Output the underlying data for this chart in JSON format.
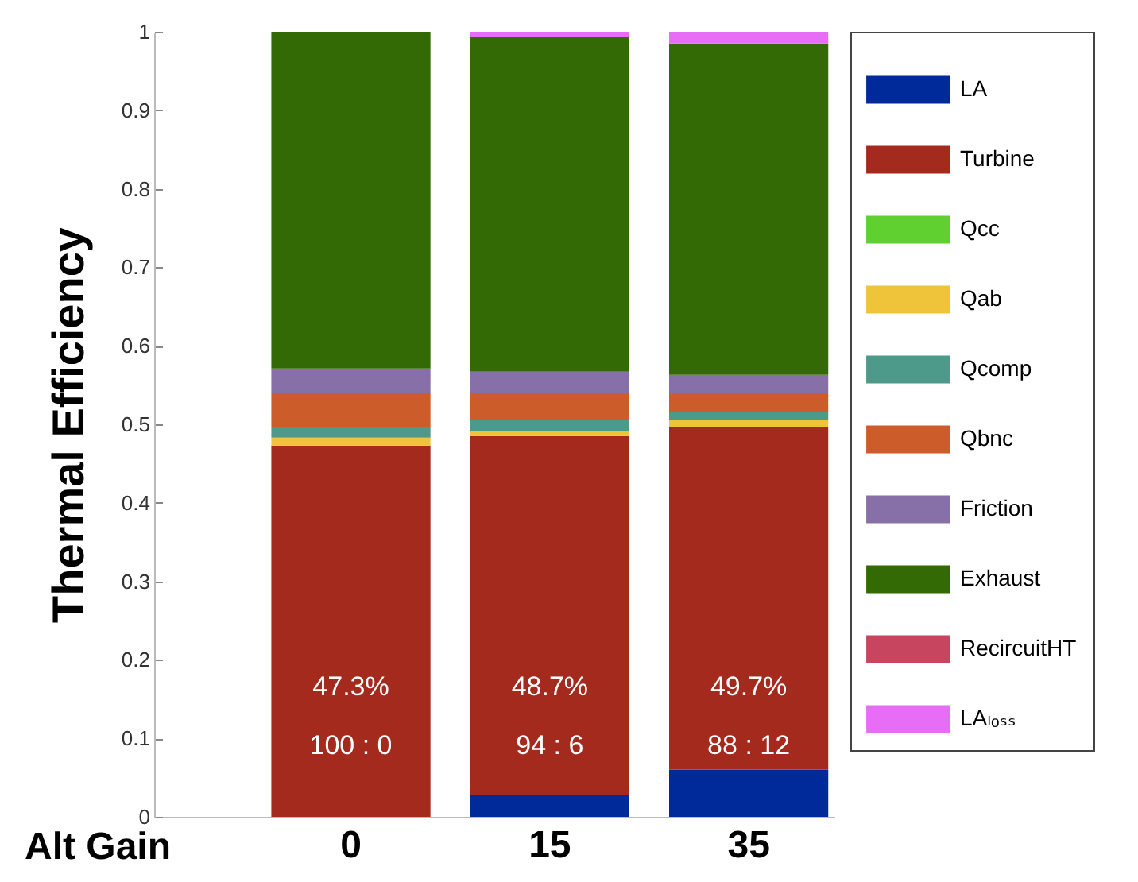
{
  "chart_data": {
    "type": "bar",
    "stacked": true,
    "ylabel": "Thermal Efficiency",
    "xlabel": "Alt Gain",
    "categories": [
      "0",
      "15",
      "35"
    ],
    "ylim": [
      0,
      1
    ],
    "yticks": [
      0,
      0.1,
      0.2,
      0.3,
      0.4,
      0.5,
      0.6,
      0.7,
      0.8,
      0.9,
      1
    ],
    "grid": false,
    "legend": "top right",
    "series": [
      {
        "name": "LA",
        "color": "#002a9a",
        "values": [
          0,
          0.028,
          0.06
        ]
      },
      {
        "name": "Turbine",
        "color": "#a52a1e",
        "values": [
          0.473,
          0.457,
          0.437
        ]
      },
      {
        "name": "Qcc",
        "color": "#5fd02f",
        "values": [
          0,
          0,
          0
        ]
      },
      {
        "name": "Qab",
        "color": "#f0c43a",
        "values": [
          0.01,
          0.007,
          0.008
        ]
      },
      {
        "name": "Qcomp",
        "color": "#4e9a8a",
        "values": [
          0.013,
          0.014,
          0.011
        ]
      },
      {
        "name": "Qbnc",
        "color": "#cc5c2a",
        "values": [
          0.044,
          0.034,
          0.024
        ]
      },
      {
        "name": "Friction",
        "color": "#8770a8",
        "values": [
          0.031,
          0.027,
          0.023
        ]
      },
      {
        "name": "Exhaust",
        "color": "#336a05",
        "values": [
          0.429,
          0.426,
          0.422
        ]
      },
      {
        "name": "RecircuitHT",
        "color": "#c84560",
        "values": [
          0,
          0,
          0
        ]
      },
      {
        "name": "LAₗₒₛₛ",
        "color": "#e76cf6",
        "values": [
          0,
          0.007,
          0.015
        ]
      }
    ],
    "annotations": [
      "47.3%",
      "48.7%",
      "49.7%",
      "100 : 0",
      "94 : 6",
      "88 : 12"
    ]
  }
}
